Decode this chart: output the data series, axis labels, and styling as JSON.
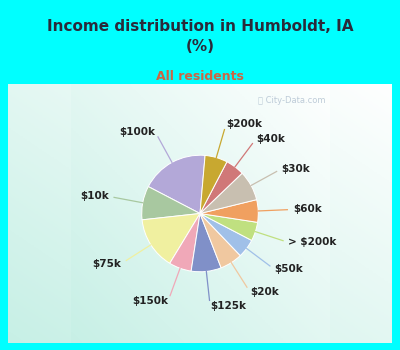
{
  "title": "Income distribution in Humboldt, IA\n(%)",
  "subtitle": "All residents",
  "background_top": "#00FFFF",
  "background_chart_color1": "#c8ede8",
  "background_chart_color2": "#f0faf8",
  "title_color": "#2a2a3a",
  "subtitle_color": "#cc6644",
  "watermark": "ⓘ City-Data.com",
  "labels": [
    "$100k",
    "$10k",
    "$75k",
    "$150k",
    "$125k",
    "$20k",
    "$50k",
    "> $200k",
    "$60k",
    "$30k",
    "$40k",
    "$200k"
  ],
  "values": [
    18,
    9,
    14,
    6,
    8,
    6,
    5,
    5,
    6,
    8,
    5,
    6
  ],
  "colors": [
    "#b3a8d8",
    "#a8c8a0",
    "#f0f0a0",
    "#f0a8b8",
    "#8090c8",
    "#f0c8a0",
    "#a0c0e8",
    "#c0e080",
    "#f0a060",
    "#c8bfb0",
    "#d07878",
    "#c8a830"
  ],
  "startangle": 85,
  "label_fontsize": 7.5,
  "label_color": "#222222"
}
